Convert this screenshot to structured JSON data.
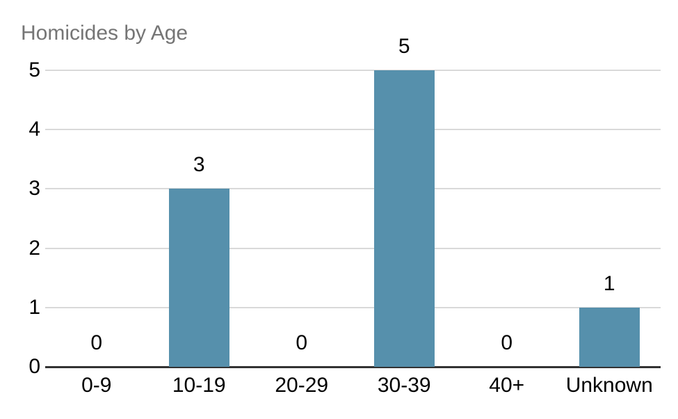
{
  "chart_data": {
    "type": "bar",
    "title": "Homicides by Age",
    "categories": [
      "0-9",
      "10-19",
      "20-29",
      "30-39",
      "40+",
      "Unknown"
    ],
    "values": [
      0,
      3,
      0,
      5,
      0,
      1
    ],
    "data_labels": [
      "0",
      "3",
      "0",
      "5",
      "0",
      "1"
    ],
    "y_ticks": [
      0,
      1,
      2,
      3,
      4,
      5
    ],
    "ylim": [
      0,
      5
    ],
    "xlabel": "",
    "ylabel": "",
    "grid": "horizontal-only",
    "legend": "none"
  },
  "colors": {
    "background": "#ffffff",
    "bar": "#5690ac",
    "gridline": "#d9d9d9",
    "axis_line": "#333333",
    "title_text": "#757575",
    "label_text": "#000000"
  }
}
